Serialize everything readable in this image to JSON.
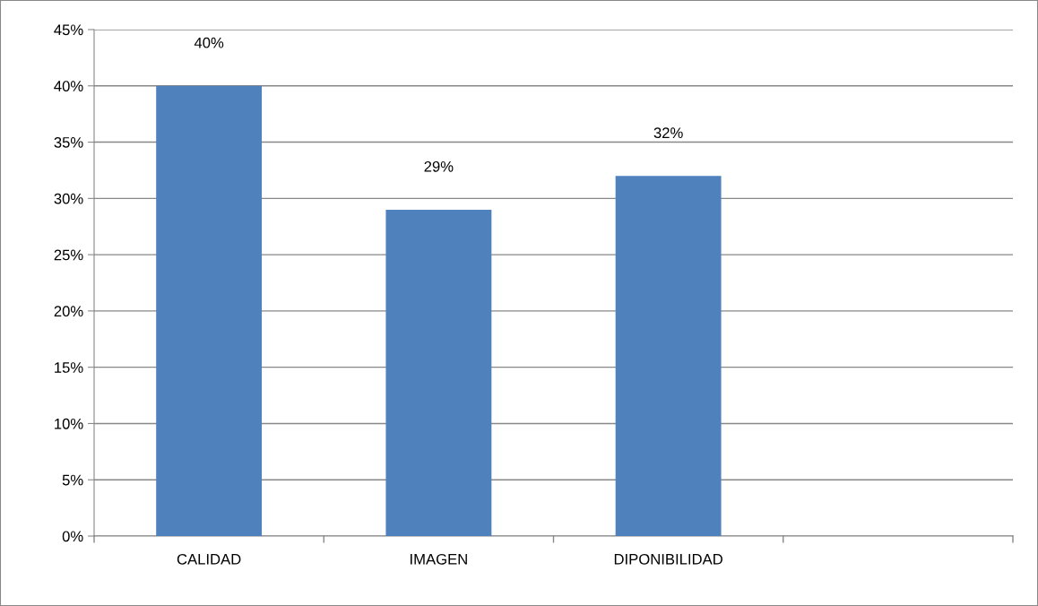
{
  "chart_data": {
    "type": "bar",
    "categories": [
      "CALIDAD",
      "IMAGEN",
      "DIPONIBILIDAD",
      null
    ],
    "values": [
      40,
      29,
      32,
      null
    ],
    "value_labels": [
      "40%",
      "29%",
      "32%",
      null
    ],
    "color": "#4f81bd",
    "ylim": [
      0,
      45
    ],
    "yticks": [
      {
        "value": 0,
        "label": "0%"
      },
      {
        "value": 5,
        "label": "5%"
      },
      {
        "value": 10,
        "label": "10%"
      },
      {
        "value": 15,
        "label": "15%"
      },
      {
        "value": 20,
        "label": "20%"
      },
      {
        "value": 25,
        "label": "25%"
      },
      {
        "value": 30,
        "label": "30%"
      },
      {
        "value": 35,
        "label": "35%"
      },
      {
        "value": 40,
        "label": "40%"
      },
      {
        "value": 45,
        "label": "45%"
      }
    ],
    "grid": "y",
    "legend": false
  }
}
